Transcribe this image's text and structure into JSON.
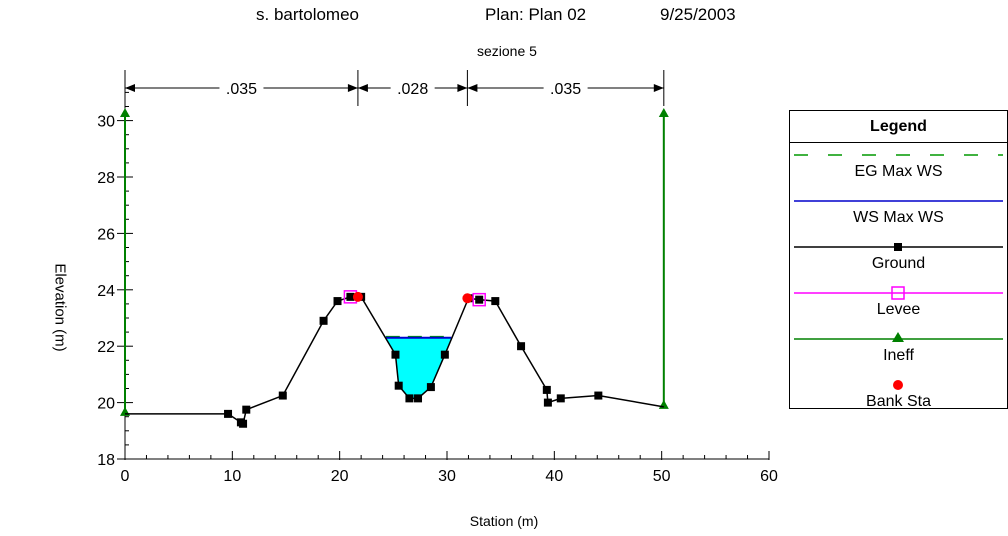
{
  "header": {
    "project": "s. bartolomeo",
    "plan": "Plan: Plan 02",
    "date": "9/25/2003",
    "section": "sezione 5"
  },
  "chart_data": {
    "type": "line",
    "title": "s. bartolomeo      Plan: Plan 02      9/25/2003",
    "subtitle": "sezione 5",
    "xlabel": "Station (m)",
    "ylabel": "Elevation (m)",
    "xlim": [
      0,
      60
    ],
    "ylim": [
      18,
      31
    ],
    "xticks": [
      0,
      10,
      20,
      30,
      40,
      50,
      60
    ],
    "yticks": [
      18,
      20,
      22,
      24,
      26,
      28,
      30
    ],
    "manning": [
      {
        "label": ".035",
        "from": 0,
        "to": 21.7
      },
      {
        "label": ".028",
        "from": 21.7,
        "to": 31.9
      },
      {
        "label": ".035",
        "from": 31.9,
        "to": 50.2
      }
    ],
    "series": [
      {
        "name": "Ground",
        "color": "#000000",
        "x": [
          0,
          9.6,
          10.8,
          11.0,
          11.3,
          14.7,
          18.5,
          19.8,
          21.0,
          22.0,
          25.2,
          25.5,
          26.5,
          27.3,
          28.5,
          29.8,
          32.0,
          33.0,
          34.5,
          36.9,
          39.3,
          39.4,
          40.6,
          44.1,
          50.2
        ],
        "y": [
          19.6,
          19.6,
          19.3,
          19.25,
          19.75,
          20.25,
          22.9,
          23.6,
          23.75,
          23.75,
          21.7,
          20.6,
          20.15,
          20.15,
          20.55,
          21.7,
          23.7,
          23.65,
          23.6,
          22.0,
          20.45,
          20.0,
          20.15,
          20.25,
          19.85
        ]
      },
      {
        "name": "WS Max WS",
        "color": "#0000cc",
        "x": [
          24.3,
          30.4
        ],
        "y": [
          22.3,
          22.3
        ]
      },
      {
        "name": "EG Max WS",
        "color": "#009900",
        "x": [
          24.3,
          30.4
        ],
        "y": [
          22.32,
          22.32
        ]
      },
      {
        "name": "Levee",
        "color": "#ff00ff",
        "x": [
          21.0,
          33.0
        ],
        "y": [
          23.75,
          23.65
        ]
      },
      {
        "name": "Ineff",
        "color": "#008000",
        "x": [
          0,
          50.2
        ],
        "y": [
          30.2,
          30.2
        ]
      },
      {
        "name": "Bank Sta",
        "color": "#ff0000",
        "x": [
          21.7,
          31.9
        ],
        "y": [
          23.75,
          23.7
        ]
      }
    ]
  },
  "legend": {
    "title": "Legend",
    "items": [
      {
        "label": "EG Max WS",
        "kind": "dash",
        "color": "#009900"
      },
      {
        "label": "WS Max WS",
        "kind": "line",
        "color": "#0000cc"
      },
      {
        "label": "Ground",
        "kind": "square",
        "color": "#000000"
      },
      {
        "label": "Levee",
        "kind": "open-square",
        "color": "#ff00ff"
      },
      {
        "label": "Ineff",
        "kind": "triangle",
        "color": "#008000"
      },
      {
        "label": "Bank Sta",
        "kind": "dot",
        "color": "#ff0000"
      }
    ]
  }
}
